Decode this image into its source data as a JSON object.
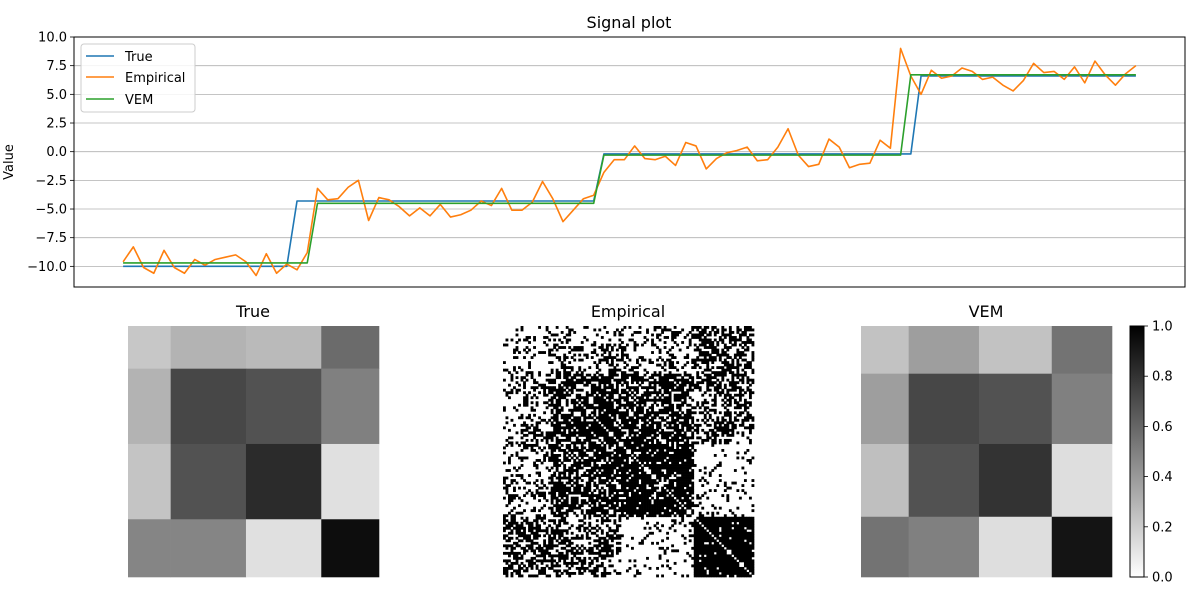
{
  "figure": {
    "signal": {
      "title": "Signal plot",
      "ylabel": "Value",
      "legend": [
        "True",
        "Empirical",
        "VEM"
      ]
    },
    "heatmaps": [
      {
        "title": "True"
      },
      {
        "title": "Empirical"
      },
      {
        "title": "VEM"
      }
    ]
  },
  "chart_data": [
    {
      "type": "line",
      "title": "Signal plot",
      "xlabel": "",
      "ylabel": "Value",
      "ylim": [
        -11.8,
        10
      ],
      "xlim": [
        -4.8,
        103.8
      ],
      "xticks_visible": false,
      "yticks": [
        -10.0,
        -7.5,
        -5.0,
        -2.5,
        0.0,
        2.5,
        5.0,
        7.5,
        10.0
      ],
      "ytick_labels": [
        "−10.0",
        "−7.5",
        "−5.0",
        "−2.5",
        "0.0",
        "2.5",
        "5.0",
        "7.5",
        "10.0"
      ],
      "grid": "horizontal",
      "legend_position": "top-left",
      "colors": {
        "True": "#1f77b4",
        "Empirical": "#ff7f0e",
        "VEM": "#2ca02c"
      },
      "series": [
        {
          "name": "True",
          "type": "step",
          "segments": [
            [
              0,
              16,
              -10.0
            ],
            [
              17,
              46,
              -4.3
            ],
            [
              47,
              77,
              -0.2
            ],
            [
              78,
              99,
              6.6
            ]
          ]
        },
        {
          "name": "Empirical",
          "values": [
            -9.6,
            -8.3,
            -10.1,
            -10.6,
            -8.6,
            -10.1,
            -10.6,
            -9.4,
            -9.9,
            -9.4,
            -9.2,
            -9.0,
            -9.6,
            -10.8,
            -8.9,
            -10.6,
            -9.8,
            -10.3,
            -8.8,
            -3.2,
            -4.2,
            -4.1,
            -3.1,
            -2.5,
            -6.0,
            -4.0,
            -4.2,
            -4.8,
            -5.6,
            -4.9,
            -5.6,
            -4.6,
            -5.7,
            -5.5,
            -5.1,
            -4.3,
            -4.7,
            -3.2,
            -5.1,
            -5.1,
            -4.4,
            -2.6,
            -4.1,
            -6.1,
            -5.1,
            -4.1,
            -3.8,
            -1.8,
            -0.7,
            -0.7,
            0.5,
            -0.6,
            -0.7,
            -0.4,
            -1.2,
            0.8,
            0.5,
            -1.5,
            -0.6,
            -0.1,
            0.1,
            0.4,
            -0.8,
            -0.7,
            0.4,
            2.0,
            -0.3,
            -1.3,
            -1.1,
            1.1,
            0.4,
            -1.4,
            -1.1,
            -1.0,
            1.0,
            0.3,
            9.0,
            6.6,
            5.0,
            7.1,
            6.4,
            6.6,
            7.3,
            7.0,
            6.3,
            6.5,
            5.8,
            5.3,
            6.2,
            7.7,
            6.9,
            7.0,
            6.3,
            7.4,
            6.0,
            7.9,
            6.7,
            5.8,
            6.8,
            7.5
          ]
        },
        {
          "name": "VEM",
          "type": "step",
          "segments": [
            [
              0,
              18,
              -9.7
            ],
            [
              19,
              46,
              -4.5
            ],
            [
              47,
              76,
              -0.3
            ],
            [
              77,
              99,
              6.7
            ]
          ]
        }
      ]
    },
    {
      "type": "heatmap",
      "title": "True",
      "cmap": "gray_r",
      "clim": [
        0,
        1
      ],
      "col_widths": [
        0.17,
        0.3,
        0.3,
        0.23
      ],
      "row_heights": [
        0.17,
        0.3,
        0.3,
        0.23
      ],
      "values": [
        [
          0.22,
          0.3,
          0.27,
          0.58
        ],
        [
          0.3,
          0.72,
          0.68,
          0.5
        ],
        [
          0.23,
          0.68,
          0.83,
          0.12
        ],
        [
          0.48,
          0.48,
          0.12,
          0.95
        ]
      ]
    },
    {
      "type": "heatmap",
      "title": "Empirical",
      "cmap": "gray_r",
      "clim": [
        0,
        1
      ],
      "size": 100,
      "blocks": [
        0,
        19,
        47,
        76,
        100
      ],
      "block_probs": [
        [
          0.22,
          0.3,
          0.27,
          0.58
        ],
        [
          0.3,
          0.72,
          0.68,
          0.5
        ],
        [
          0.23,
          0.68,
          0.83,
          0.12
        ],
        [
          0.48,
          0.48,
          0.12,
          0.95
        ]
      ],
      "diagonal": 0
    },
    {
      "type": "heatmap",
      "title": "VEM",
      "cmap": "gray_r",
      "clim": [
        0,
        1
      ],
      "col_widths": [
        0.19,
        0.28,
        0.29,
        0.24
      ],
      "row_heights": [
        0.19,
        0.28,
        0.29,
        0.24
      ],
      "values": [
        [
          0.24,
          0.38,
          0.24,
          0.55
        ],
        [
          0.38,
          0.72,
          0.68,
          0.5
        ],
        [
          0.25,
          0.68,
          0.8,
          0.13
        ],
        [
          0.55,
          0.5,
          0.13,
          0.92
        ]
      ]
    },
    {
      "type": "colorbar",
      "cmap": "gray_r",
      "range": [
        0.0,
        1.0
      ],
      "ticks": [
        0.0,
        0.2,
        0.4,
        0.6,
        0.8,
        1.0
      ],
      "tick_labels": [
        "0.0",
        "0.2",
        "0.4",
        "0.6",
        "0.8",
        "1.0"
      ]
    }
  ]
}
